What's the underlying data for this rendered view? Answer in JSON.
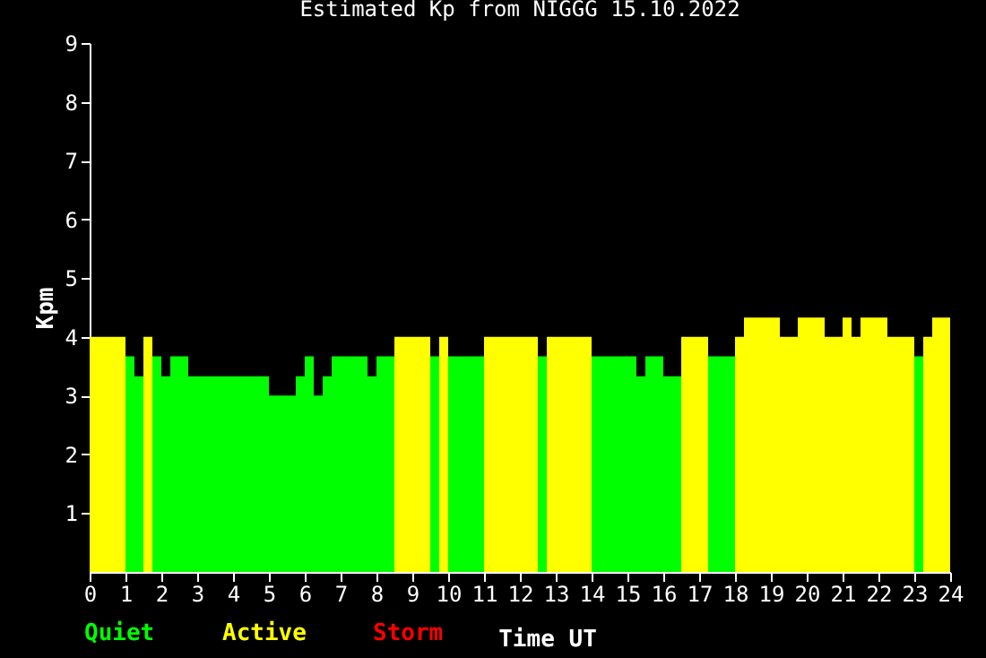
{
  "chart_data": {
    "type": "bar",
    "title": "Estimated Kp from NIGGG 15.10.2022",
    "xlabel": "Time UT",
    "ylabel": "Kpm",
    "x": [
      0,
      0.25,
      0.5,
      0.75,
      1,
      1.25,
      1.5,
      1.75,
      2,
      2.25,
      2.5,
      2.75,
      3,
      3.25,
      3.5,
      3.75,
      4,
      4.25,
      4.5,
      4.75,
      5,
      5.25,
      5.5,
      5.75,
      6,
      6.25,
      6.5,
      6.75,
      7,
      7.25,
      7.5,
      7.75,
      8,
      8.25,
      8.5,
      8.75,
      9,
      9.25,
      9.5,
      9.75,
      10,
      10.25,
      10.5,
      10.75,
      11,
      11.25,
      11.5,
      11.75,
      12,
      12.25,
      12.5,
      12.75,
      13,
      13.25,
      13.5,
      13.75,
      14,
      14.25,
      14.5,
      14.75,
      15,
      15.25,
      15.5,
      15.75,
      16,
      16.25,
      16.5,
      16.75,
      17,
      17.25,
      17.5,
      17.75,
      18,
      18.25,
      18.5,
      18.75,
      19,
      19.25,
      19.5,
      19.75,
      20,
      20.25,
      20.5,
      20.75,
      21,
      21.25,
      21.5,
      21.75,
      22,
      22.25,
      22.5,
      22.75,
      23,
      23.25,
      23.5,
      23.75
    ],
    "series": [
      {
        "name": "Quiet",
        "color": "#00ff00",
        "values": [
          null,
          null,
          null,
          null,
          3.67,
          3.33,
          null,
          3.67,
          3.33,
          3.67,
          3.67,
          3.33,
          3.33,
          3.33,
          3.33,
          3.33,
          3.33,
          3.33,
          3.33,
          3.33,
          3,
          3,
          3,
          3.33,
          3.67,
          3,
          3.33,
          3.67,
          3.67,
          3.67,
          3.67,
          3.33,
          3.67,
          3.67,
          null,
          null,
          null,
          null,
          3.67,
          null,
          3.67,
          3.67,
          3.67,
          3.67,
          null,
          null,
          null,
          null,
          null,
          null,
          3.67,
          null,
          null,
          null,
          null,
          null,
          3.67,
          3.67,
          3.67,
          3.67,
          3.67,
          3.33,
          3.67,
          3.67,
          3.33,
          3.33,
          null,
          null,
          null,
          3.67,
          3.67,
          3.67,
          null,
          null,
          null,
          null,
          null,
          null,
          null,
          null,
          null,
          null,
          null,
          null,
          null,
          null,
          null,
          null,
          null,
          null,
          null,
          null,
          3.67,
          null,
          null,
          null
        ]
      },
      {
        "name": "Active",
        "color": "#ffff00",
        "values": [
          4,
          4,
          4,
          4,
          null,
          null,
          4,
          null,
          null,
          null,
          null,
          null,
          null,
          null,
          null,
          null,
          null,
          null,
          null,
          null,
          null,
          null,
          null,
          null,
          null,
          null,
          null,
          null,
          null,
          null,
          null,
          null,
          null,
          null,
          4,
          4,
          4,
          4,
          null,
          4,
          null,
          null,
          null,
          null,
          4,
          4,
          4,
          4,
          4,
          4,
          null,
          4,
          4,
          4,
          4,
          4,
          null,
          null,
          null,
          null,
          null,
          null,
          null,
          null,
          null,
          null,
          4,
          4,
          4,
          null,
          null,
          null,
          4,
          4.33,
          4.33,
          4.33,
          4.33,
          4,
          4,
          4.33,
          4.33,
          4.33,
          4,
          4,
          4.33,
          4,
          4.33,
          4.33,
          4.33,
          4,
          4,
          4,
          null,
          4,
          4.33,
          4.33
        ]
      },
      {
        "name": "Storm",
        "color": "#ff0000",
        "values": [
          null,
          null,
          null,
          null,
          null,
          null,
          null,
          null,
          null,
          null,
          null,
          null,
          null,
          null,
          null,
          null,
          null,
          null,
          null,
          null,
          null,
          null,
          null,
          null,
          null,
          null,
          null,
          null,
          null,
          null,
          null,
          null,
          null,
          null,
          null,
          null,
          null,
          null,
          null,
          null,
          null,
          null,
          null,
          null,
          null,
          null,
          null,
          null,
          null,
          null,
          null,
          null,
          null,
          null,
          null,
          null,
          null,
          null,
          null,
          null,
          null,
          null,
          null,
          null,
          null,
          null,
          null,
          null,
          null,
          null,
          null,
          null,
          null,
          null,
          null,
          null,
          null,
          null,
          null,
          null,
          null,
          null,
          null,
          null,
          null,
          null,
          null,
          null,
          null,
          null,
          null,
          null,
          null,
          null,
          null,
          null
        ]
      }
    ],
    "xlim": [
      0,
      24
    ],
    "xticks": [
      0,
      1,
      2,
      3,
      4,
      5,
      6,
      7,
      8,
      9,
      10,
      11,
      12,
      13,
      14,
      15,
      16,
      17,
      18,
      19,
      20,
      21,
      22,
      23,
      24
    ],
    "ylim": [
      0,
      9
    ],
    "yticks": [
      1,
      2,
      3,
      4,
      5,
      6,
      7,
      8,
      9
    ],
    "legend": "bottom left"
  }
}
